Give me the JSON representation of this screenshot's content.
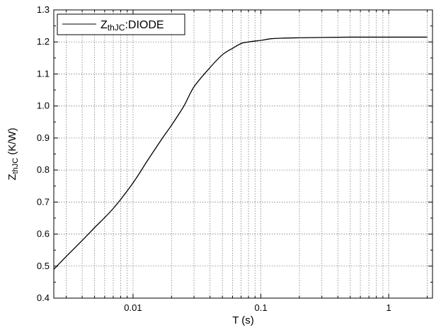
{
  "chart_data": {
    "type": "line",
    "xscale": "log",
    "xlim": [
      0.0024,
      2.2
    ],
    "ylim": [
      0.4,
      1.3
    ],
    "xlabel": "T (s)",
    "ylabel": {
      "base": "Z",
      "sub": "thJC",
      "rest": " (K/W)"
    },
    "xticks": [
      {
        "value": 0.01,
        "label": "0.01"
      },
      {
        "value": 0.1,
        "label": "0.1"
      },
      {
        "value": 1,
        "label": "1"
      }
    ],
    "yticks": [
      {
        "value": 0.4,
        "label": "0.4"
      },
      {
        "value": 0.5,
        "label": "0.5"
      },
      {
        "value": 0.6,
        "label": "0.6"
      },
      {
        "value": 0.7,
        "label": "0.7"
      },
      {
        "value": 0.8,
        "label": "0.8"
      },
      {
        "value": 0.9,
        "label": "0.9"
      },
      {
        "value": 1.0,
        "label": "1.0"
      },
      {
        "value": 1.1,
        "label": "1.1"
      },
      {
        "value": 1.2,
        "label": "1.2"
      },
      {
        "value": 1.3,
        "label": "1.3"
      }
    ],
    "grid": true,
    "legend_position": "top-left",
    "series": [
      {
        "name_parts": {
          "base": "Z",
          "sub": "thJC",
          "rest": ":DIODE"
        },
        "color": "#000000",
        "x": [
          0.0024,
          0.003,
          0.004,
          0.005,
          0.007,
          0.01,
          0.013,
          0.017,
          0.02,
          0.025,
          0.03,
          0.04,
          0.05,
          0.06,
          0.07,
          0.08,
          0.1,
          0.12,
          0.15,
          0.2,
          0.3,
          0.5,
          1,
          2
        ],
        "y": [
          0.49,
          0.53,
          0.58,
          0.62,
          0.68,
          0.76,
          0.83,
          0.9,
          0.94,
          1.0,
          1.06,
          1.12,
          1.16,
          1.18,
          1.195,
          1.2,
          1.205,
          1.21,
          1.212,
          1.213,
          1.214,
          1.215,
          1.215,
          1.215
        ]
      }
    ]
  }
}
